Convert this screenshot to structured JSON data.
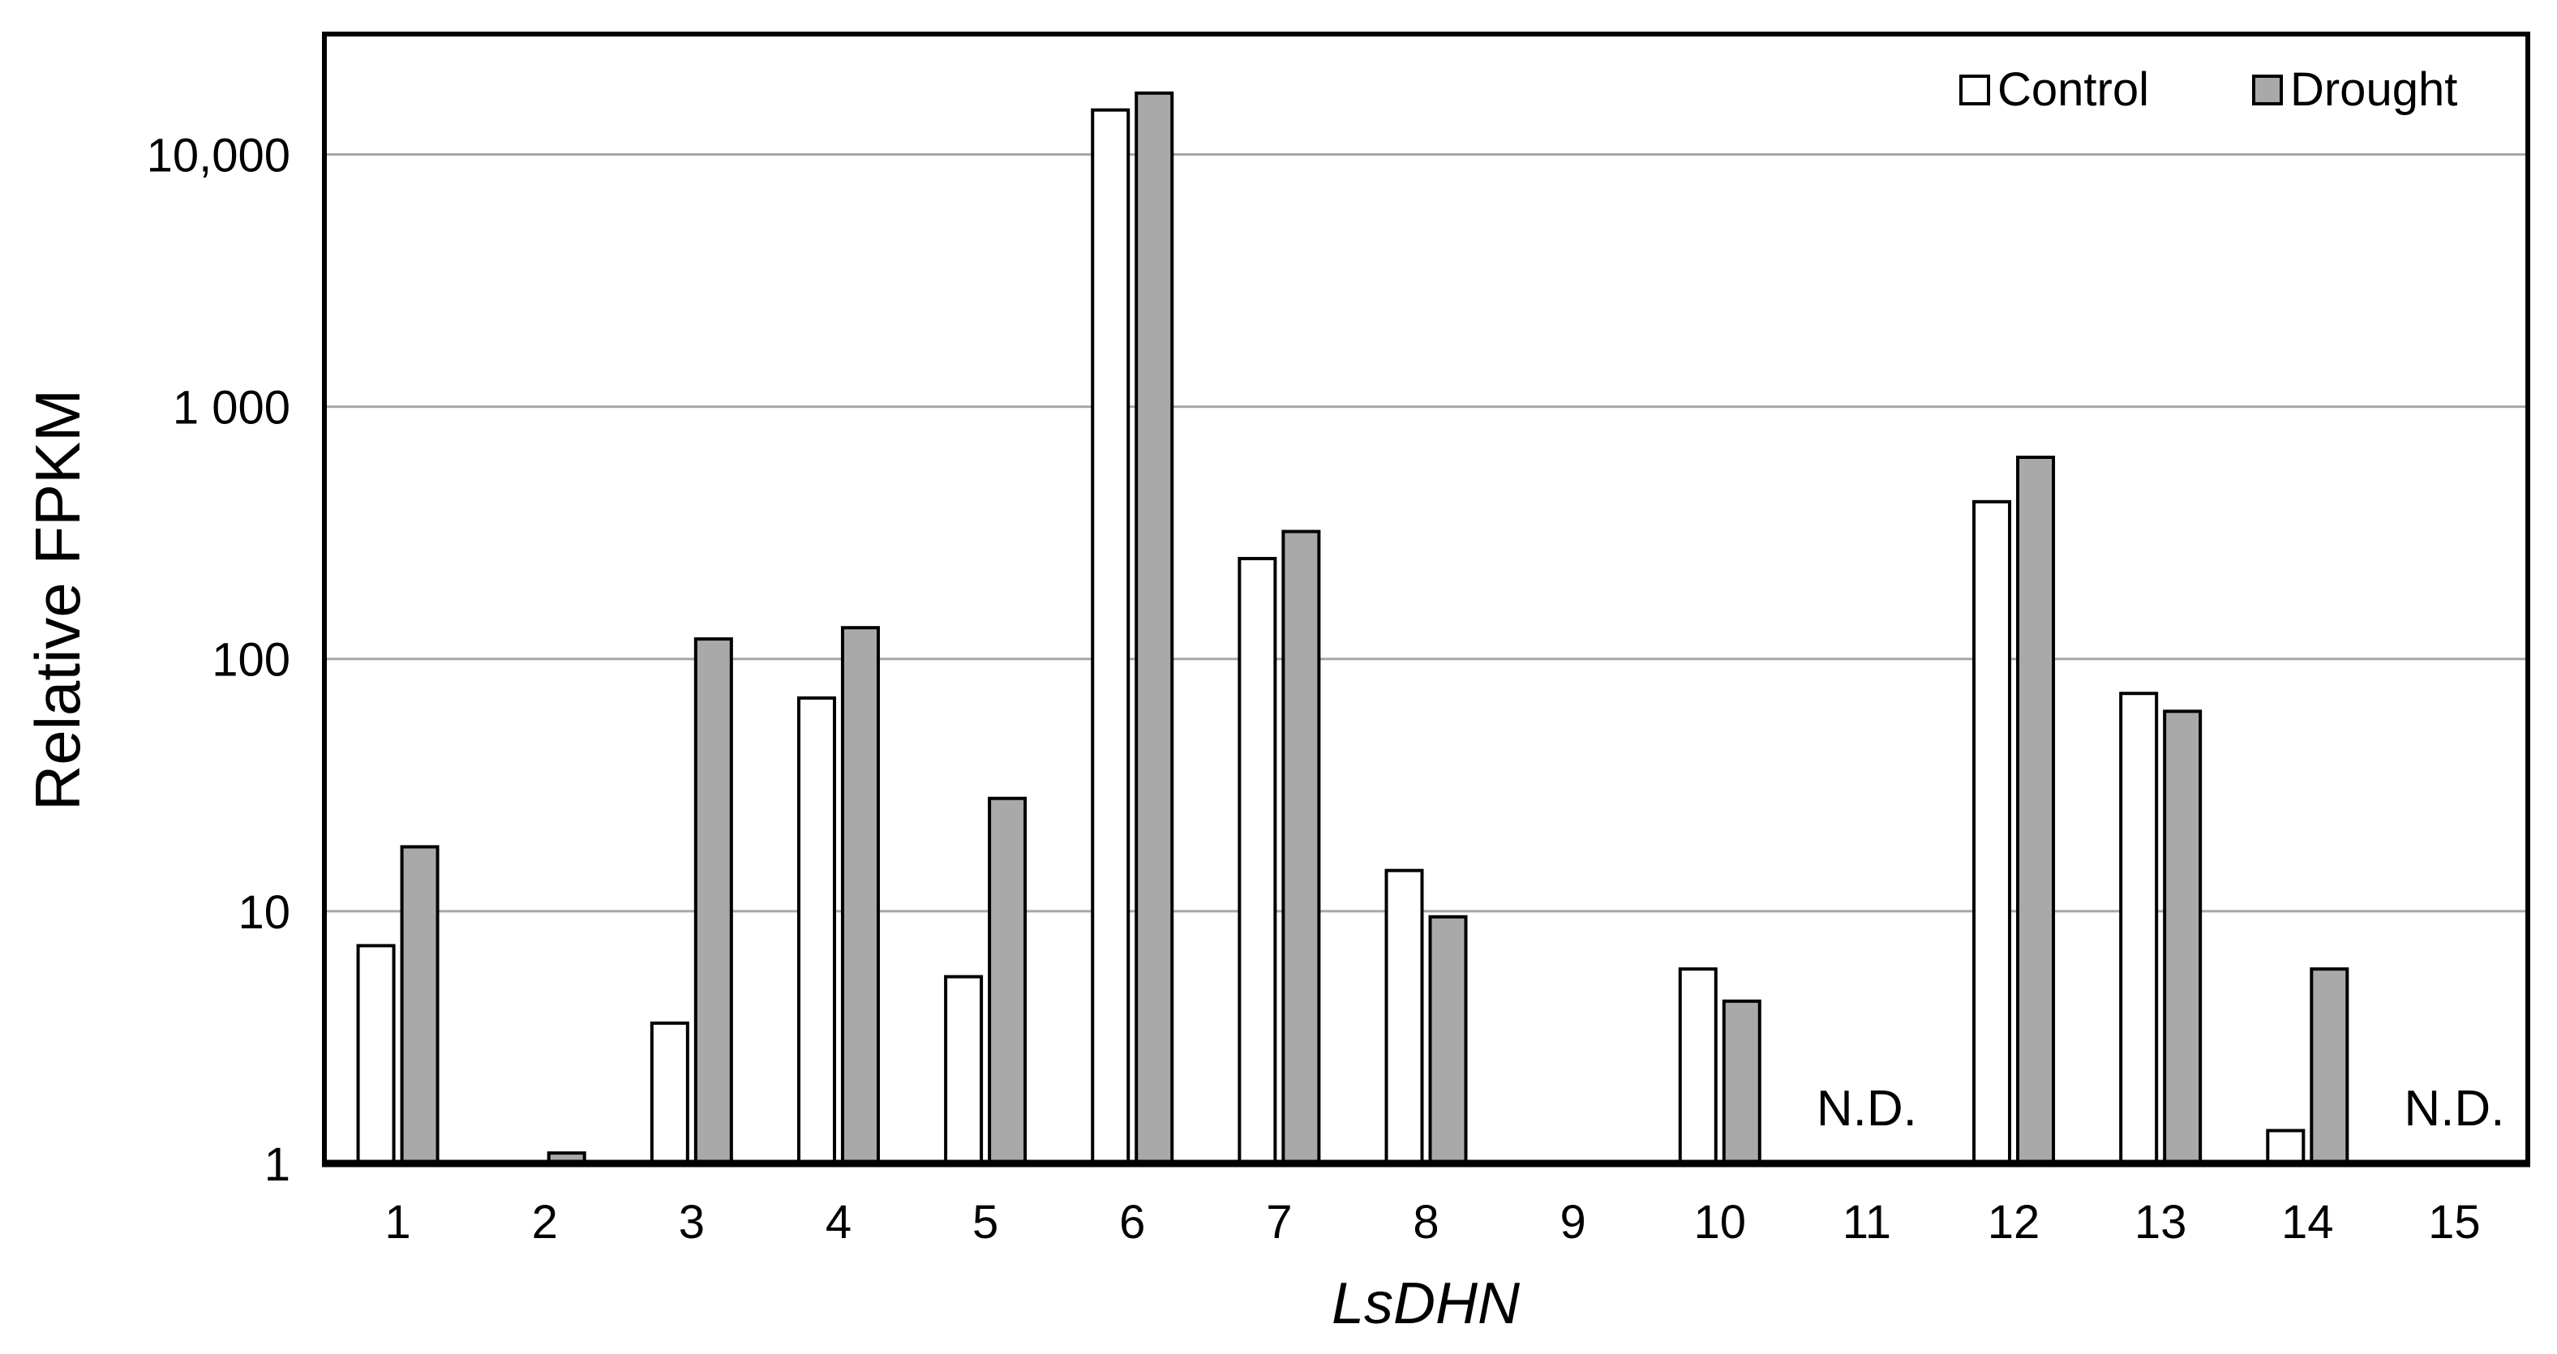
{
  "figure": {
    "y_axis_title": "Relative FPKM",
    "x_axis_title": "LsDHN",
    "not_detected_label": "N.D."
  },
  "chart_data": {
    "type": "bar",
    "scale_y": "log10",
    "title": "",
    "xlabel": "LsDHN",
    "ylabel": "Relative FPKM",
    "ylim": [
      1,
      30000
    ],
    "grid": true,
    "legend_position": "top-right",
    "yticks": [
      {
        "value": 1,
        "label": "1"
      },
      {
        "value": 10,
        "label": "10"
      },
      {
        "value": 100,
        "label": "100"
      },
      {
        "value": 1000,
        "label": "1 000"
      },
      {
        "value": 10000,
        "label": "10,000"
      }
    ],
    "categories": [
      "1",
      "2",
      "3",
      "4",
      "5",
      "6",
      "7",
      "8",
      "9",
      "10",
      "11",
      "12",
      "13",
      "14",
      "15"
    ],
    "series": [
      {
        "name": "Control",
        "color": "#ffffff",
        "values": [
          7.3,
          null,
          3.6,
          70,
          5.5,
          15000,
          250,
          14.5,
          null,
          5.9,
          null,
          420,
          73,
          1.35,
          null
        ]
      },
      {
        "name": "Drought",
        "color": "#a9a9a9",
        "values": [
          18,
          1.1,
          120,
          133,
          28,
          17500,
          320,
          9.5,
          null,
          4.4,
          null,
          630,
          62,
          5.9,
          null
        ]
      }
    ],
    "annotations": [
      {
        "category": "11",
        "text": "N.D."
      },
      {
        "category": "15",
        "text": "N.D."
      }
    ]
  },
  "colors": {
    "foreground": "#000000",
    "background": "#ffffff",
    "grid": "#a6a6a6",
    "control_fill": "#ffffff",
    "drought_fill": "#a9a9a9"
  }
}
